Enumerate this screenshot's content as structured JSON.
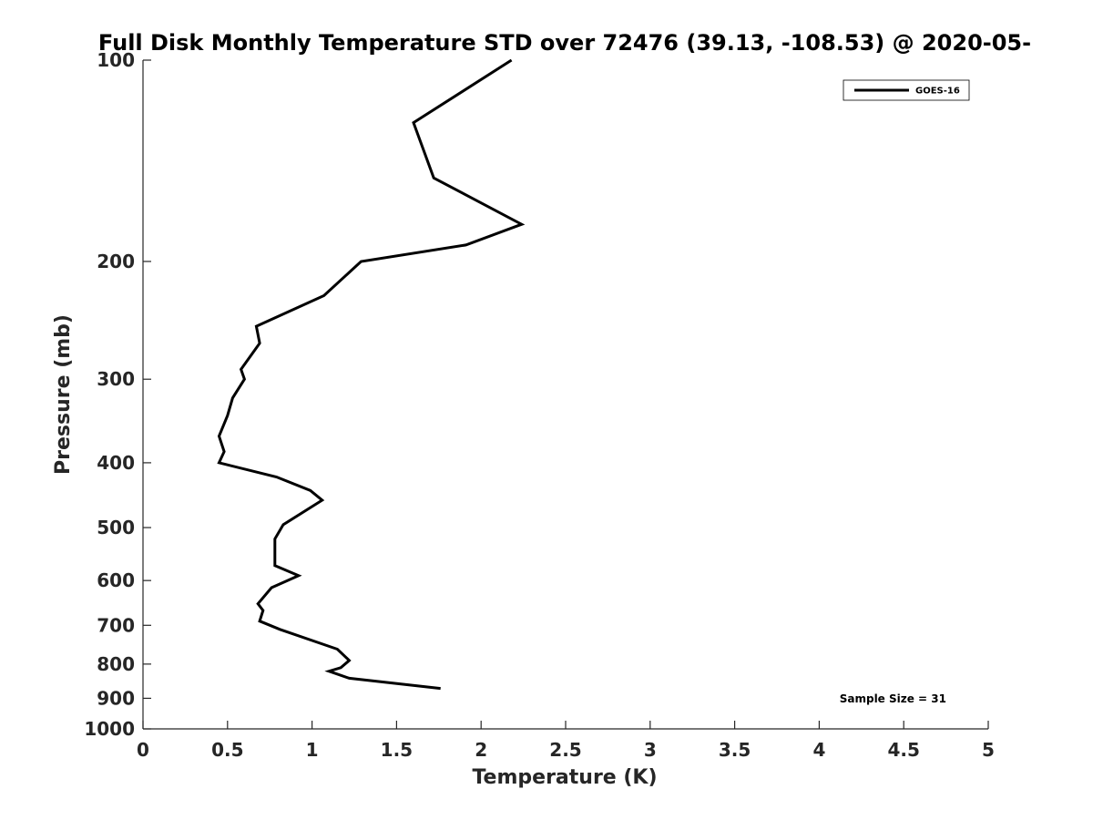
{
  "chart_data": {
    "type": "line",
    "title": "Full Disk Monthly Temperature STD over 72476 (39.13, -108.53) @ 2020-05-",
    "xlabel": "Temperature (K)",
    "ylabel": "Pressure (mb)",
    "xlim": [
      0,
      5
    ],
    "ylim": [
      100,
      1000
    ],
    "y_scale": "log",
    "y_reversed": true,
    "x_ticks": [
      "0",
      "0.5",
      "1",
      "1.5",
      "2",
      "2.5",
      "3",
      "3.5",
      "4",
      "4.5",
      "5"
    ],
    "x_tick_values": [
      0,
      0.5,
      1,
      1.5,
      2,
      2.5,
      3,
      3.5,
      4,
      4.5,
      5
    ],
    "y_ticks": [
      "100",
      "200",
      "300",
      "400",
      "500",
      "600",
      "700",
      "800",
      "900",
      "1000"
    ],
    "y_tick_values": [
      100,
      200,
      300,
      400,
      500,
      600,
      700,
      800,
      900,
      1000
    ],
    "grid": false,
    "legend_position": "top-right",
    "annotation": "Sample Size = 31",
    "series": [
      {
        "name": "GOES-16",
        "color": "#000000",
        "x": [
          2.18,
          1.6,
          1.72,
          2.24,
          1.91,
          1.29,
          1.07,
          0.67,
          0.69,
          0.58,
          0.6,
          0.53,
          0.5,
          0.45,
          0.48,
          0.45,
          0.79,
          0.99,
          1.06,
          0.83,
          0.78,
          0.78,
          0.92,
          0.76,
          0.68,
          0.71,
          0.69,
          0.81,
          1.15,
          1.22,
          1.17,
          1.1,
          1.22,
          1.76
        ],
        "y": [
          100,
          124,
          150,
          176,
          189,
          200,
          225,
          250,
          265,
          290,
          300,
          320,
          340,
          365,
          385,
          400,
          420,
          440,
          455,
          495,
          520,
          570,
          590,
          615,
          650,
          665,
          690,
          710,
          760,
          790,
          810,
          820,
          840,
          870
        ]
      }
    ]
  }
}
